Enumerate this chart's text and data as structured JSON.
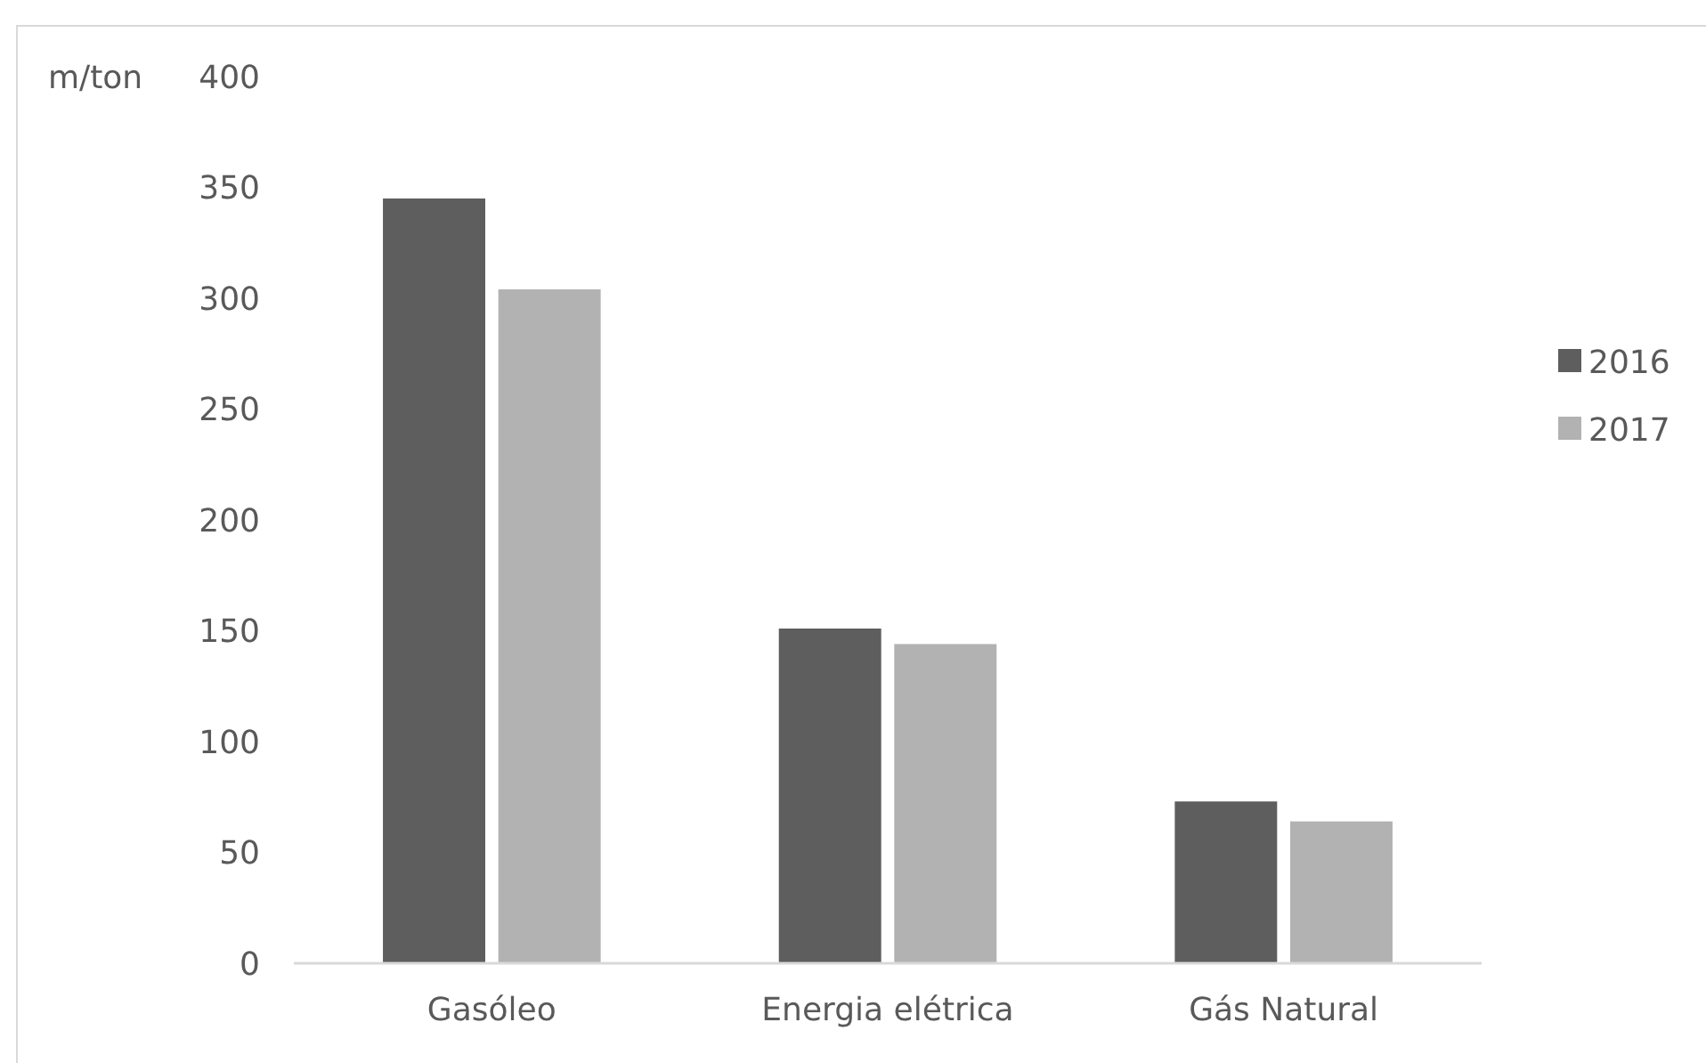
{
  "chart_data": {
    "type": "bar",
    "ylabel": "m/ton",
    "categories": [
      "Gasóleo",
      "Energia elétrica",
      "Gás Natural"
    ],
    "series": [
      {
        "name": "2016",
        "color": "#5e5e5e",
        "values": [
          345,
          151,
          73
        ]
      },
      {
        "name": "2017",
        "color": "#b2b2b2",
        "values": [
          304,
          144,
          64
        ]
      }
    ],
    "ylim": [
      0,
      400
    ],
    "yticks": [
      0,
      50,
      100,
      150,
      200,
      250,
      300,
      350,
      400
    ],
    "grid": false,
    "legend": "right"
  }
}
